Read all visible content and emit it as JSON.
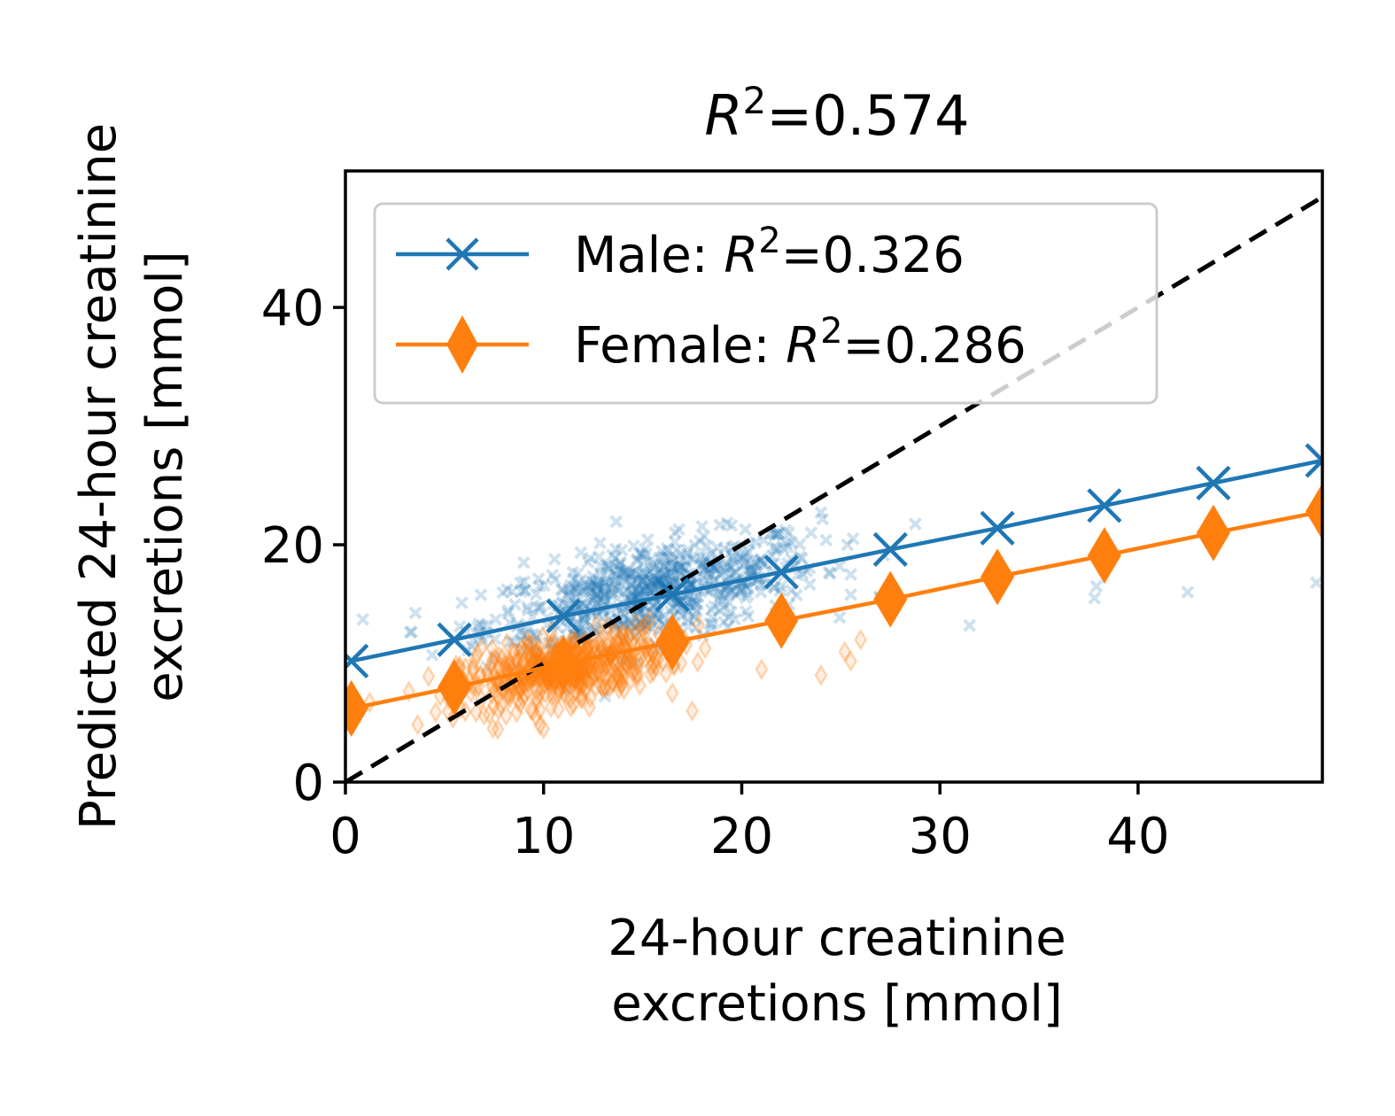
{
  "chart_data": {
    "type": "scatter",
    "title": {
      "prefix": "R",
      "exp": "2",
      "suffix": "=0.574"
    },
    "xlabel": [
      "24-hour creatinine",
      "excretions [mmol]"
    ],
    "ylabel": [
      "Predicted 24-hour creatinine",
      "excretions [mmol]"
    ],
    "xlim": [
      0,
      49.3
    ],
    "ylim": [
      0,
      51.5
    ],
    "xticks": [
      0,
      10,
      20,
      30,
      40
    ],
    "yticks": [
      0,
      20,
      40
    ],
    "x_tick_labels": [
      "0",
      "10",
      "20",
      "30",
      "40"
    ],
    "y_tick_labels": [
      "0",
      "20",
      "40"
    ],
    "grid": false,
    "legend_position": "top-left",
    "identity_line": {
      "style": "dashed",
      "color": "#000000",
      "x": [
        0,
        49.3
      ],
      "y": [
        0,
        49.3
      ]
    },
    "series": [
      {
        "name": {
          "prefix": "Male: ",
          "r": "R",
          "exp": "2",
          "suffix": "=0.326"
        },
        "color": "#1f77b4",
        "marker": "x",
        "fit_line": {
          "x": [
            0.3,
            5.5,
            11,
            16.5,
            22,
            27.5,
            32.9,
            38.3,
            43.8,
            49.3
          ],
          "y": [
            10.2,
            12.0,
            14.0,
            15.8,
            17.7,
            19.6,
            21.4,
            23.3,
            25.2,
            27.1
          ]
        },
        "scatter_cloud": {
          "x_center": 15.5,
          "y_center": 16.0,
          "x_sd": 4.2,
          "y_sd": 2.4,
          "count": 700
        },
        "scatter_outliers": [
          [
            31.5,
            13.2
          ],
          [
            37.8,
            15.5
          ],
          [
            37.9,
            16.5
          ],
          [
            42.5,
            16.0
          ],
          [
            49.0,
            16.8
          ],
          [
            25.5,
            17.5
          ],
          [
            27.0,
            15.5
          ],
          [
            23.5,
            21.0
          ],
          [
            9,
            18.5
          ],
          [
            8.5,
            11.8
          ]
        ]
      },
      {
        "name": {
          "prefix": "Female: ",
          "r": "R",
          "exp": "2",
          "suffix": "=0.286"
        },
        "color": "#ff7f0e",
        "marker": "d",
        "fit_line": {
          "x": [
            0.3,
            5.5,
            11,
            16.5,
            22,
            27.5,
            32.9,
            38.3,
            43.8,
            49.3
          ],
          "y": [
            6.2,
            8.0,
            10.0,
            11.8,
            13.6,
            15.4,
            17.3,
            19.1,
            21.0,
            22.8
          ]
        },
        "scatter_cloud": {
          "x_center": 11.0,
          "y_center": 9.5,
          "x_sd": 2.6,
          "y_sd": 1.6,
          "count": 500
        },
        "scatter_outliers": [
          [
            21.0,
            9.5
          ],
          [
            24.0,
            9.0
          ],
          [
            25.5,
            10.2
          ],
          [
            26.0,
            12.0
          ],
          [
            25.2,
            11.0
          ],
          [
            17.5,
            6.0
          ],
          [
            16.5,
            7.5
          ],
          [
            10.0,
            4.5
          ]
        ]
      }
    ]
  },
  "colors": {
    "male": "#1f77b4",
    "female": "#ff7f0e",
    "identity": "#000000"
  }
}
